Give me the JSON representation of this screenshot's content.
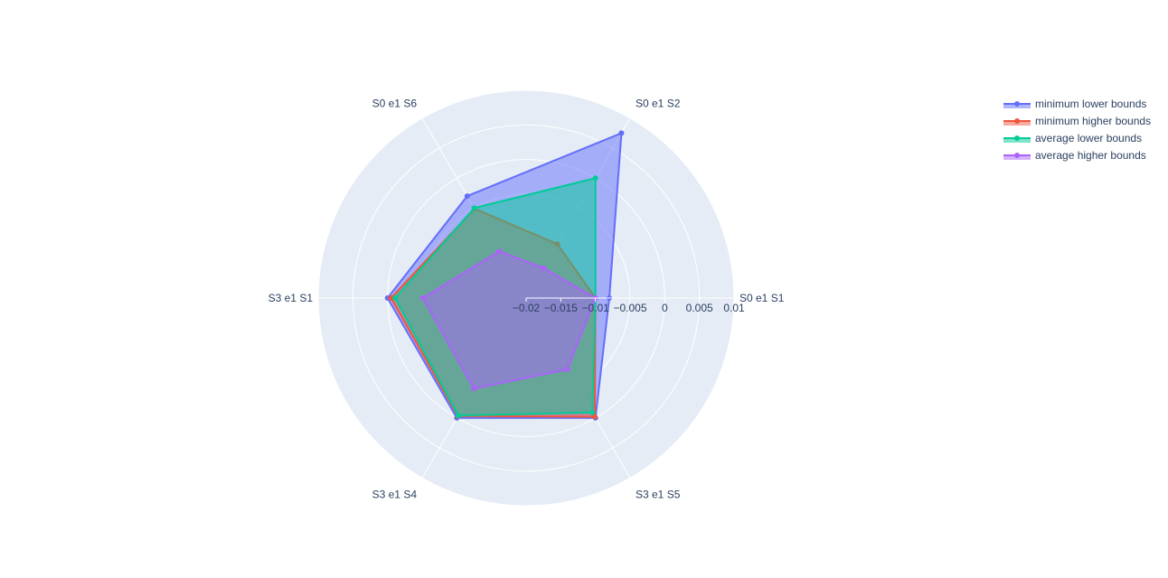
{
  "chart_data": {
    "type": "radar",
    "categories": [
      "S0 e1 S1",
      "S0 e1 S2",
      "S0 e1 S6",
      "S3 e1 S1",
      "S3 e1 S4",
      "S3 e1 S5"
    ],
    "radial_range": [
      -0.02,
      0.01
    ],
    "radial_ticks": [
      -0.02,
      -0.015,
      -0.01,
      -0.005,
      0,
      0.005,
      0.01
    ],
    "radial_tick_labels": [
      "−0.02",
      "−0.015",
      "−0.01",
      "−0.005",
      "0",
      "0.005",
      "0.01"
    ],
    "grid": true,
    "legend_position": "top-right",
    "series": [
      {
        "name": "minimum lower bounds",
        "color": "#636efa",
        "values": [
          -0.008,
          0.0075,
          -0.003,
          -0.0,
          -0.0,
          -0.0
        ]
      },
      {
        "name": "minimum higher bounds",
        "color": "#EF553B",
        "values": [
          -0.01,
          -0.011,
          -0.0051,
          -0.0005,
          -0.0003,
          -0.0002
        ]
      },
      {
        "name": "average lower bounds",
        "color": "#00cc96",
        "values": [
          -0.01,
          0.0,
          -0.005,
          -0.0011,
          -0.0004,
          -0.0009
        ]
      },
      {
        "name": "average higher bounds",
        "color": "#ab63fa",
        "values": [
          -0.01,
          -0.015,
          -0.0122,
          -0.0051,
          -0.0049,
          -0.0081
        ]
      }
    ]
  }
}
